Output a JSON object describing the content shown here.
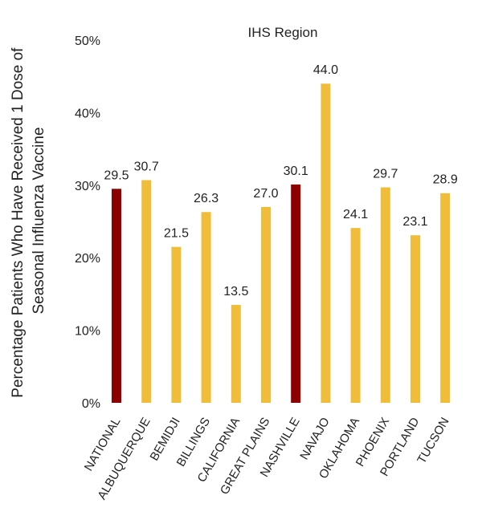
{
  "chart_data": {
    "type": "bar",
    "title": "IHS Region",
    "ylabel": "Percentage Patients Who Have Received 1 Dose of Seasonal Influenza Vaccine",
    "ylabel_lines": [
      "Percentage Patients Who Have Received 1 Dose of",
      "Seasonal Influenza Vaccine"
    ],
    "xlabel": "",
    "ylim": [
      0,
      50
    ],
    "yticks": [
      0,
      10,
      20,
      30,
      40,
      50
    ],
    "ytick_labels": [
      "0%",
      "10%",
      "20%",
      "30%",
      "40%",
      "50%"
    ],
    "grid": false,
    "categories": [
      "NATIONAL",
      "ALBUQUERQUE",
      "BEMIDJI",
      "BILLINGS",
      "CALIFORNIA",
      "GREAT PLAINS",
      "NASHVILLE",
      "NAVAJO",
      "OKLAHOMA",
      "PHOENIX",
      "PORTLAND",
      "TUCSON"
    ],
    "values": [
      29.5,
      30.7,
      21.5,
      26.3,
      13.5,
      27.0,
      30.1,
      44.0,
      24.1,
      29.7,
      23.1,
      28.9
    ],
    "value_labels": [
      "29.5",
      "30.7",
      "21.5",
      "26.3",
      "13.5",
      "27.0",
      "30.1",
      "44.0",
      "24.1",
      "29.7",
      "23.1",
      "28.9"
    ],
    "bar_colors": [
      "#8B0000",
      "#F0BD3A",
      "#F0BD3A",
      "#F0BD3A",
      "#F0BD3A",
      "#F0BD3A",
      "#8B0000",
      "#F0BD3A",
      "#F0BD3A",
      "#F0BD3A",
      "#F0BD3A",
      "#F0BD3A"
    ]
  }
}
